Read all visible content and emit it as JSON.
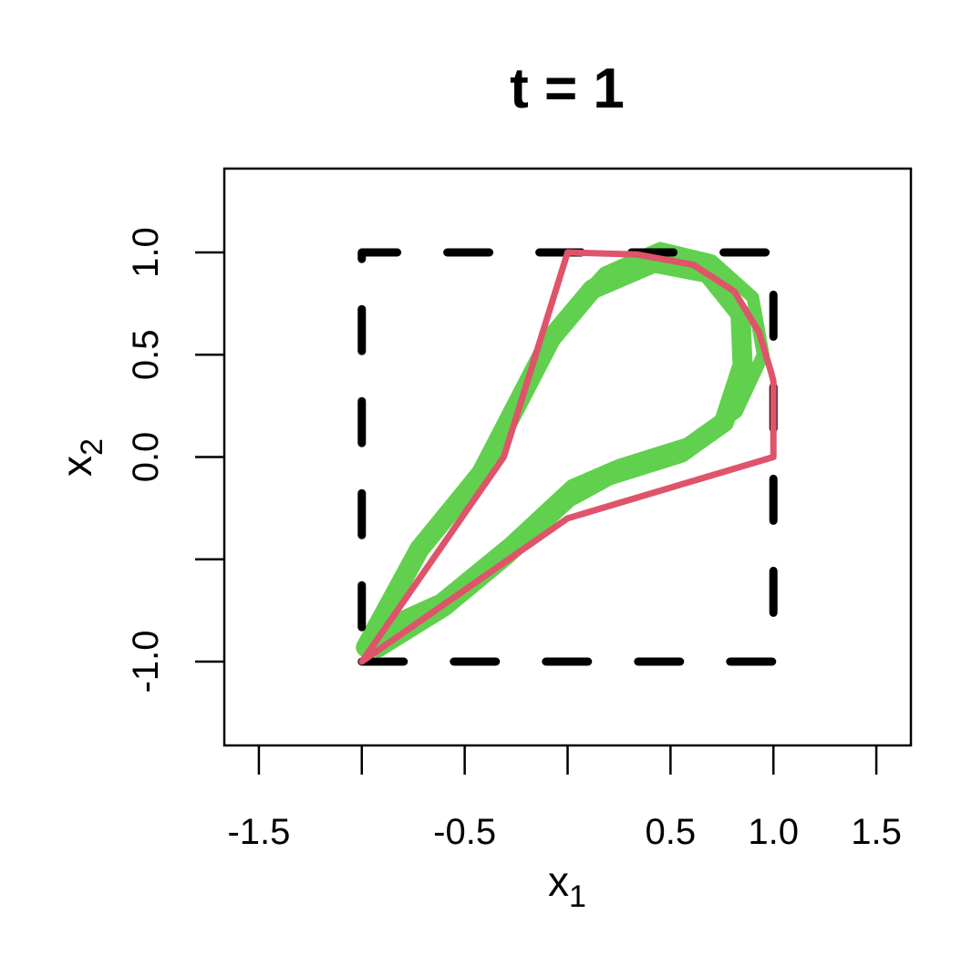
{
  "chart_data": {
    "type": "line",
    "title": "t = 1",
    "x_label": {
      "text": "x",
      "subscript": "1"
    },
    "y_label": {
      "text": "x",
      "subscript": "2"
    },
    "xlim": [
      -1.668,
      1.668
    ],
    "ylim": [
      -1.41,
      1.41
    ],
    "xticks": [
      -1.5,
      {
        "value": -1,
        "label": null
      },
      -0.5,
      {
        "value": 0,
        "label": null
      },
      0.5,
      {
        "value": 1,
        "label": "1.0"
      },
      1.5
    ],
    "yticks": [
      {
        "value": -1,
        "label": "-1.0"
      },
      {
        "value": -0.5,
        "label": null
      },
      {
        "value": 0,
        "label": "0.0"
      },
      0.5,
      {
        "value": 1,
        "label": "1.0"
      }
    ],
    "series": [
      {
        "color": "#61d04f",
        "width": 22,
        "dash": false,
        "x": [
          -0.98,
          -0.72,
          -0.42,
          -0.25,
          -0.08,
          0.12,
          0.42,
          0.68,
          0.84,
          0.85,
          0.76,
          0.55,
          0.2,
          0.0,
          -0.3,
          -0.6,
          -0.92
        ],
        "values": [
          -0.93,
          -0.45,
          -0.08,
          0.25,
          0.58,
          0.82,
          0.95,
          0.9,
          0.7,
          0.45,
          0.17,
          0.02,
          -0.09,
          -0.2,
          -0.48,
          -0.73,
          -0.93
        ]
      },
      {
        "color": "#61d04f",
        "width": 14,
        "dash": false,
        "x": [
          -0.95,
          -0.68,
          -0.38,
          -0.2,
          -0.02,
          0.18,
          0.45,
          0.7,
          0.9,
          0.95,
          0.82,
          0.6,
          0.25,
          0.02,
          -0.28,
          -0.62,
          -0.95
        ],
        "values": [
          -0.85,
          -0.38,
          0.0,
          0.35,
          0.68,
          0.9,
          1.02,
          0.96,
          0.78,
          0.5,
          0.22,
          0.07,
          -0.04,
          -0.14,
          -0.42,
          -0.7,
          -0.85
        ]
      },
      {
        "color": "#000000",
        "width": 9,
        "dash": true,
        "x": [
          -1,
          1,
          1,
          -1,
          -1
        ],
        "values": [
          -1,
          -1,
          1,
          1,
          -1
        ]
      },
      {
        "color": "#df536b",
        "width": 7,
        "dash": false,
        "x": [
          -1,
          -0.31,
          0,
          0.34,
          0.61,
          0.81,
          0.93,
          0.99,
          1,
          1,
          0,
          -1
        ],
        "values": [
          -1,
          0,
          1,
          0.99,
          0.94,
          0.81,
          0.61,
          0.41,
          0.37,
          0,
          -0.3,
          -1
        ]
      }
    ]
  }
}
